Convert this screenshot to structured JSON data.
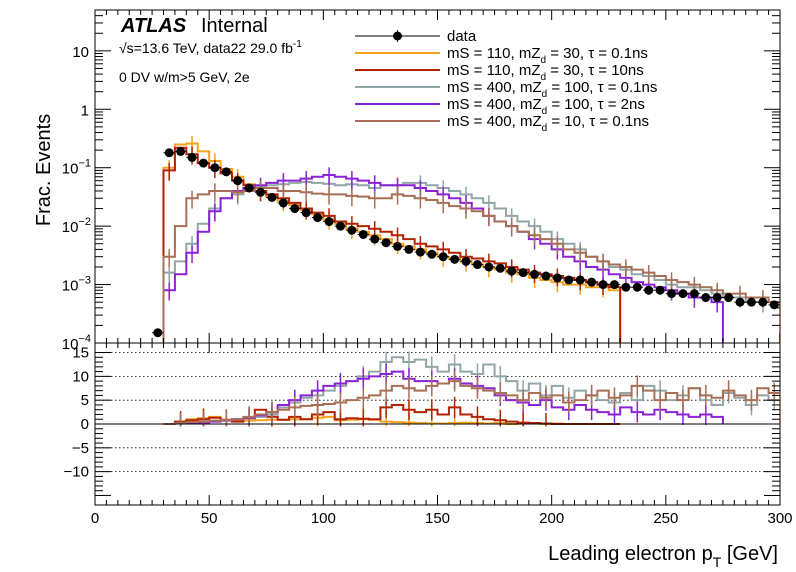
{
  "chart_data": {
    "type": "histogram",
    "title": "",
    "header": {
      "experiment": "ATLAS",
      "status": "Internal",
      "energy_lumi": "√s=13.6 TeV, data22 29.0 fb",
      "energy_lumi_sup": "-1",
      "selection": "0 DV w/m>5 GeV, 2e"
    },
    "xlabel": "Leading electron p",
    "xlabel_sub": "T",
    "xlabel_unit": " [GeV]",
    "xlim": [
      0,
      300
    ],
    "x_ticks": [
      "0",
      "50",
      "100",
      "150",
      "200",
      "250",
      "300"
    ],
    "top": {
      "ylabel": "Frac. Events",
      "scale": "log",
      "ylim": [
        0.0001,
        50
      ],
      "y_ticks": [
        {
          "v": 10,
          "label": "10"
        },
        {
          "v": 1,
          "label": "1"
        },
        {
          "v": 0.1,
          "label": "10",
          "exp": "−1"
        },
        {
          "v": 0.01,
          "label": "10",
          "exp": "−2"
        },
        {
          "v": 0.001,
          "label": "10",
          "exp": "−3"
        },
        {
          "v": 0.0001,
          "label": "10",
          "exp": "−4"
        }
      ]
    },
    "bottom": {
      "ylim": [
        -17,
        17
      ],
      "y_ticks": [
        "15",
        "10",
        "5",
        "0",
        "−5",
        "−10"
      ],
      "grid_y": [
        15,
        10,
        5,
        0,
        -5,
        -10
      ]
    },
    "bin_width": 5,
    "data": {
      "name": "data",
      "color": "#000000",
      "x": [
        27.5,
        32.5,
        37.5,
        42.5,
        47.5,
        52.5,
        57.5,
        62.5,
        67.5,
        72.5,
        77.5,
        82.5,
        87.5,
        92.5,
        97.5,
        102.5,
        107.5,
        112.5,
        117.5,
        122.5,
        127.5,
        132.5,
        137.5,
        142.5,
        147.5,
        152.5,
        157.5,
        162.5,
        167.5,
        172.5,
        177.5,
        182.5,
        187.5,
        192.5,
        197.5,
        202.5,
        207.5,
        212.5,
        217.5,
        222.5,
        227.5,
        232.5,
        237.5,
        242.5,
        247.5,
        252.5,
        257.5,
        262.5,
        267.5,
        272.5,
        277.5,
        282.5,
        287.5,
        292.5,
        297.5
      ],
      "y": [
        0.00015,
        0.18,
        0.19,
        0.15,
        0.12,
        0.1,
        0.085,
        0.06,
        0.045,
        0.038,
        0.031,
        0.025,
        0.02,
        0.017,
        0.014,
        0.012,
        0.01,
        0.0085,
        0.0072,
        0.006,
        0.0052,
        0.0045,
        0.004,
        0.0036,
        0.0033,
        0.003,
        0.0027,
        0.0025,
        0.0022,
        0.002,
        0.0019,
        0.0017,
        0.0016,
        0.0015,
        0.0014,
        0.0013,
        0.0012,
        0.0012,
        0.0011,
        0.001,
        0.001,
        0.0009,
        0.0009,
        0.0008,
        0.0008,
        0.0007,
        0.0007,
        0.0007,
        0.0006,
        0.0006,
        0.0006,
        0.0005,
        0.0005,
        0.0005,
        0.00045
      ]
    },
    "series": [
      {
        "name": "mS = 110, mZ",
        "name_sub": "d",
        "name_rest": " = 30, τ = 0.1ns",
        "color": "#f4a11b",
        "x_start": 30,
        "values": [
          0.1,
          0.25,
          0.26,
          0.19,
          0.13,
          0.095,
          0.07,
          0.052,
          0.04,
          0.032,
          0.027,
          0.023,
          0.019,
          0.016,
          0.013,
          0.011,
          0.009,
          0.008,
          0.007,
          0.006,
          0.005,
          0.0045,
          0.004,
          0.0035,
          0.003,
          0.0028,
          0.0025,
          0.0022,
          0.002,
          0.0018,
          0.0016,
          0.0015,
          0.0013,
          0.0012,
          0.0011,
          0.001,
          0.001,
          0.0009,
          0.0009,
          0.0008
        ],
        "ratio": [
          0,
          0.5,
          1.0,
          1.2,
          1.5,
          0.8,
          0.6,
          0.7,
          0.8,
          0.9,
          0.9,
          1.0,
          1.0,
          1.3,
          1.5,
          0.8,
          0.9,
          1.0,
          0.9,
          0.5,
          0.4,
          0.3,
          0.2,
          0.1,
          0.1,
          0.2,
          0.3,
          0.2,
          0.1,
          0.2,
          0.0,
          0.1,
          0.2,
          0.0,
          0.1,
          0,
          0,
          0,
          0,
          0
        ]
      },
      {
        "name": "mS = 110, mZ",
        "name_sub": "d",
        "name_rest": " = 30, τ = 10ns",
        "color": "#b22200",
        "x_start": 30,
        "values": [
          0.09,
          0.22,
          0.17,
          0.12,
          0.1,
          0.08,
          0.06,
          0.05,
          0.04,
          0.035,
          0.03,
          0.025,
          0.02,
          0.017,
          0.015,
          0.012,
          0.011,
          0.01,
          0.009,
          0.008,
          0.007,
          0.006,
          0.005,
          0.0045,
          0.004,
          0.0035,
          0.003,
          0.0028,
          0.0025,
          0.0023,
          0.002,
          0.0018,
          0.0016,
          0.0015,
          0.0014,
          0.0013,
          0.0012,
          0.0011,
          0.001,
          0.0009
        ],
        "ratio": [
          0,
          0.5,
          0.8,
          1.0,
          1.3,
          0.9,
          0.5,
          1.2,
          3.0,
          1.5,
          0.9,
          1.5,
          1.0,
          2.0,
          2.5,
          1.0,
          1.2,
          1.1,
          1.0,
          3.5,
          4.0,
          3.0,
          2.5,
          3.0,
          2.0,
          3.5,
          2.0,
          1.5,
          1.0,
          0.8,
          0.5,
          0.3,
          0.2,
          0.1,
          0,
          0,
          0,
          0,
          0,
          0
        ]
      },
      {
        "name": "mS = 400, mZ",
        "name_sub": "d",
        "name_rest": " = 100, τ = 0.1ns",
        "color": "#92a6a8",
        "x_start": 30,
        "values": [
          0.0016,
          0.0025,
          0.005,
          0.011,
          0.02,
          0.03,
          0.035,
          0.042,
          0.048,
          0.05,
          0.052,
          0.055,
          0.057,
          0.055,
          0.053,
          0.05,
          0.052,
          0.05,
          0.045,
          0.05,
          0.05,
          0.055,
          0.055,
          0.05,
          0.045,
          0.04,
          0.035,
          0.03,
          0.025,
          0.02,
          0.015,
          0.012,
          0.01,
          0.008,
          0.006,
          0.005,
          0.004,
          0.003,
          0.0025,
          0.002,
          0.0018,
          0.0015,
          0.0014,
          0.0012,
          0.001,
          0.0009,
          0.0009,
          0.0008,
          0.0007,
          0.0006,
          0.0006,
          0.0005,
          0.0005,
          0.0005
        ],
        "ratio": [
          0,
          0.1,
          0.2,
          0.5,
          0.6,
          0.8,
          1.0,
          1.3,
          1.5,
          2.0,
          3.5,
          4.5,
          5.5,
          6.0,
          7.0,
          8.0,
          9.0,
          10.0,
          11.0,
          13.0,
          14.0,
          13.0,
          13.5,
          12.0,
          11.0,
          12.5,
          11.0,
          10.5,
          12.5,
          10.0,
          9.0,
          7.0,
          8.5,
          6.0,
          8.0,
          5.5,
          7.0,
          6.0,
          5.0,
          4.5,
          6.5,
          5.0,
          8.0,
          7.0,
          5.0,
          6.0,
          7.5,
          5.0,
          4.0,
          6.5,
          5.5,
          4.0,
          6.0,
          5.0
        ]
      },
      {
        "name": "mS = 400, mZ",
        "name_sub": "d",
        "name_rest": " = 100, τ = 2ns",
        "color": "#8c22d6",
        "x_start": 30,
        "values": [
          0.0008,
          0.0015,
          0.0035,
          0.008,
          0.018,
          0.03,
          0.04,
          0.045,
          0.05,
          0.055,
          0.06,
          0.06,
          0.065,
          0.07,
          0.075,
          0.07,
          0.065,
          0.06,
          0.055,
          0.05,
          0.05,
          0.05,
          0.045,
          0.04,
          0.035,
          0.03,
          0.025,
          0.02,
          0.015,
          0.012,
          0.01,
          0.008,
          0.006,
          0.005,
          0.004,
          0.003,
          0.0025,
          0.002,
          0.0018,
          0.0015,
          0.0013,
          0.0011,
          0.001,
          0.0009,
          0.0008,
          0.0007,
          0.0006,
          0.0006,
          0.0005
        ],
        "ratio": [
          0,
          0.1,
          0.2,
          0.3,
          0.5,
          0.7,
          1.0,
          1.3,
          1.8,
          2.5,
          4.0,
          5.0,
          6.0,
          7.0,
          8.0,
          8.5,
          9.0,
          9.5,
          10.0,
          10.5,
          11.0,
          9.5,
          9.0,
          9.0,
          8.5,
          9.5,
          8.5,
          8.0,
          7.5,
          6.0,
          5.0,
          4.5,
          4.0,
          5.0,
          3.5,
          3.0,
          4.0,
          3.0,
          2.5,
          2.0,
          3.5,
          2.5,
          2.0,
          3.0,
          2.5,
          2.0,
          1.5,
          2.0,
          1.5
        ]
      },
      {
        "name": "mS = 400, mZ",
        "name_sub": "d",
        "name_rest": " = 10, τ = 0.1ns",
        "color": "#a86f55",
        "x_start": 30,
        "values": [
          0.003,
          0.01,
          0.03,
          0.035,
          0.04,
          0.04,
          0.038,
          0.04,
          0.045,
          0.045,
          0.04,
          0.04,
          0.038,
          0.036,
          0.035,
          0.035,
          0.033,
          0.032,
          0.03,
          0.03,
          0.035,
          0.033,
          0.03,
          0.028,
          0.025,
          0.022,
          0.02,
          0.018,
          0.015,
          0.012,
          0.01,
          0.008,
          0.007,
          0.006,
          0.005,
          0.004,
          0.0035,
          0.003,
          0.0025,
          0.0022,
          0.002,
          0.0018,
          0.0016,
          0.0014,
          0.0012,
          0.0011,
          0.001,
          0.0009,
          0.0008,
          0.0007,
          0.0007,
          0.0006,
          0.0006,
          0.0005
        ],
        "ratio": [
          0,
          0.2,
          0.4,
          0.5,
          0.7,
          0.8,
          1.0,
          1.5,
          2.0,
          2.5,
          3.0,
          3.5,
          3.8,
          4.0,
          4.2,
          4.5,
          5.0,
          5.5,
          6.0,
          7.0,
          8.0,
          7.5,
          7.0,
          8.0,
          8.5,
          9.0,
          8.0,
          7.5,
          7.0,
          6.5,
          6.0,
          5.0,
          6.5,
          5.5,
          6.0,
          4.5,
          5.0,
          6.0,
          7.0,
          5.5,
          6.0,
          8.0,
          7.0,
          5.0,
          6.5,
          5.0,
          7.5,
          6.0,
          5.5,
          7.0,
          6.0,
          5.0,
          7.5,
          6.5
        ]
      }
    ],
    "legend_position": "top-right"
  }
}
